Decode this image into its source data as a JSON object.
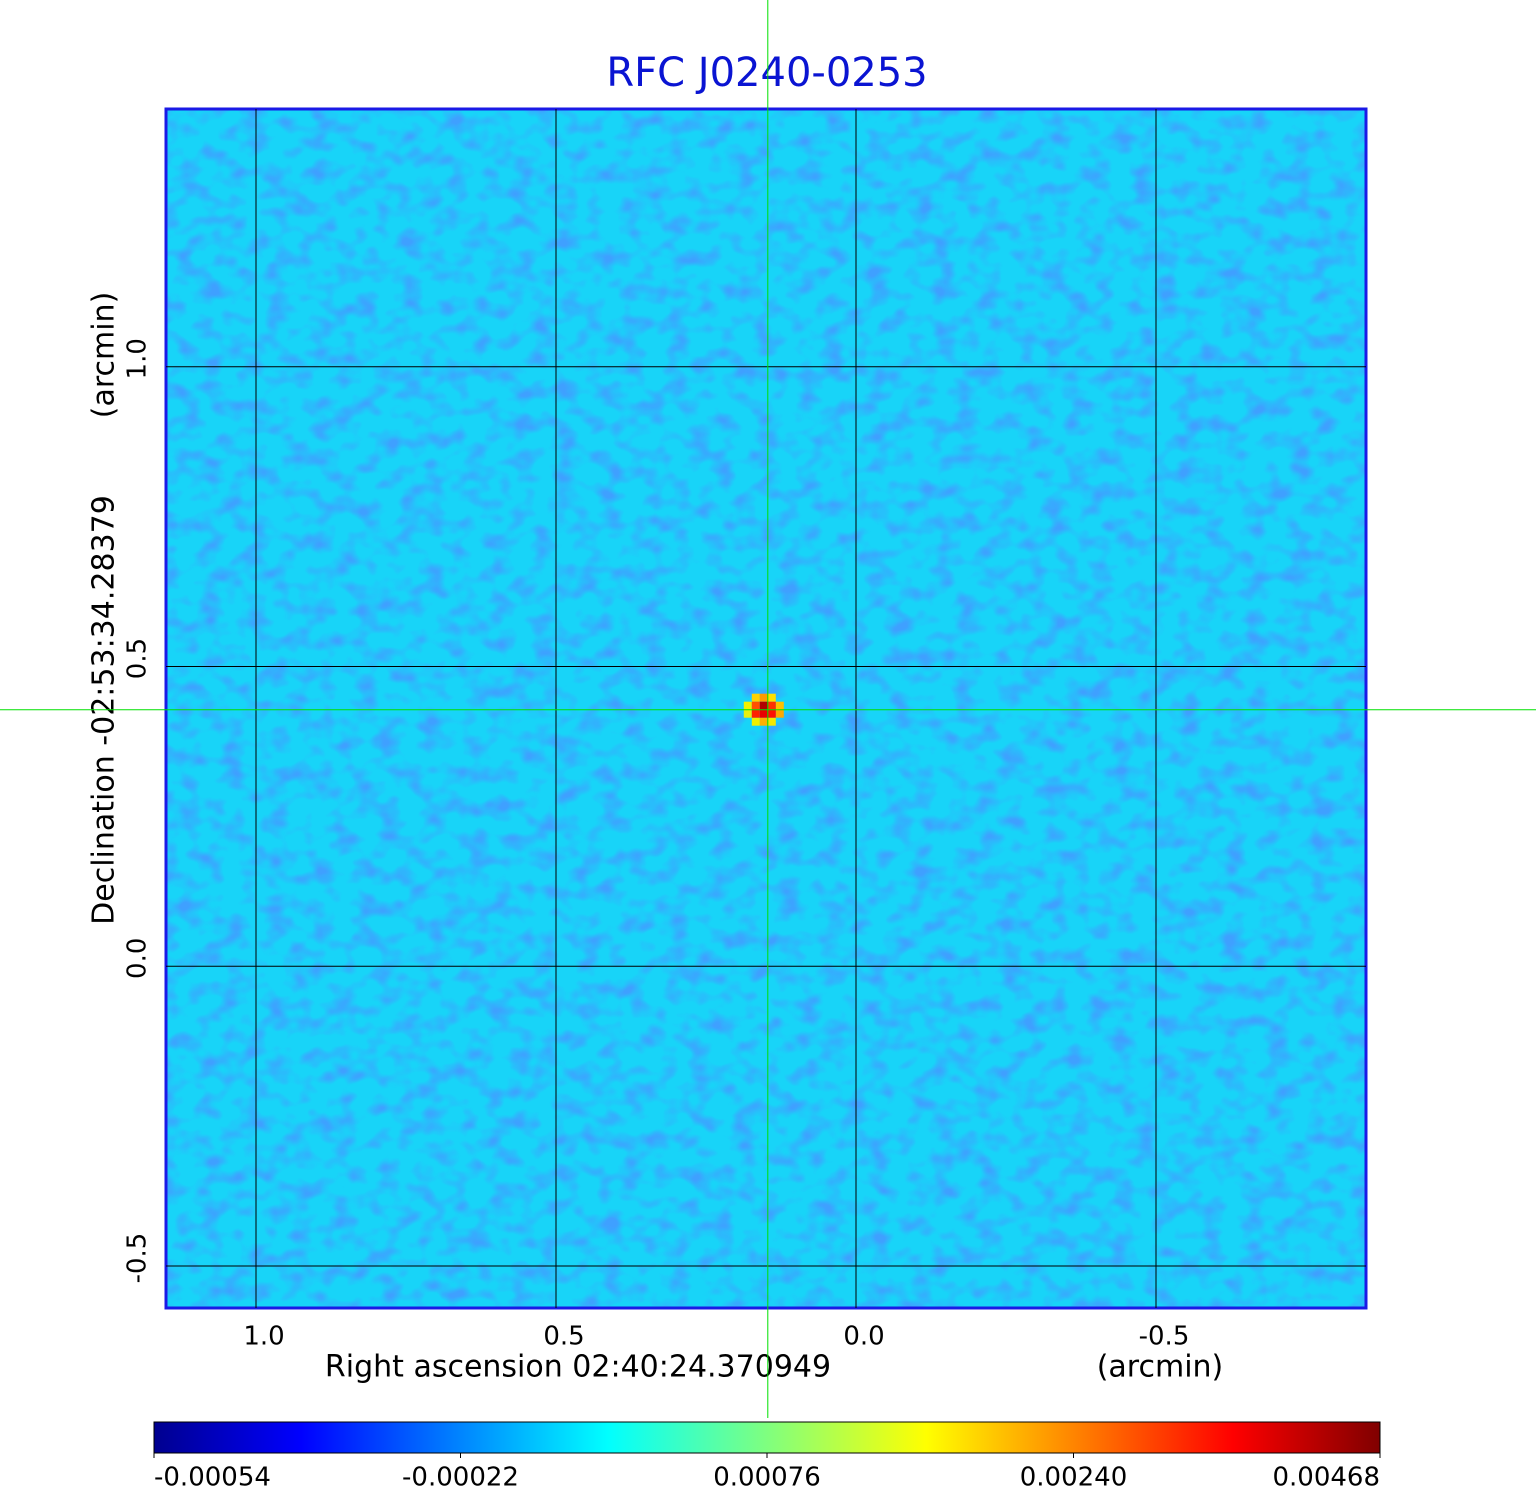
{
  "chart_data": {
    "type": "heatmap",
    "title": "RFC J0240-0253",
    "xlabel": "Right ascension  02:40:24.370949",
    "xunit": "(arcmin)",
    "ylabel": "Declination  -02:53:34.28379",
    "yunit": "(arcmin)",
    "xlim": [
      1.15,
      -0.85
    ],
    "ylim": [
      -0.57,
      1.43
    ],
    "xticks": [
      {
        "value": 1,
        "label": "1.0"
      },
      0.5,
      {
        "value": 0,
        "label": "0.0"
      },
      -0.5
    ],
    "yticks": [
      {
        "value": 1,
        "label": "1.0"
      },
      0.5,
      {
        "value": 0,
        "label": "0.0"
      },
      -0.5
    ],
    "grid": true,
    "marker": {
      "x": 0.147,
      "y": 0.428,
      "color": "#00e000"
    },
    "peak": 0.00468,
    "colormap": "jet",
    "clim": [
      -0.00054,
      0.00468
    ],
    "cticks": [
      -0.00054,
      -0.00022,
      0.00076,
      {
        "value": 0.0024,
        "label": "0.00240"
      },
      0.00468
    ]
  }
}
